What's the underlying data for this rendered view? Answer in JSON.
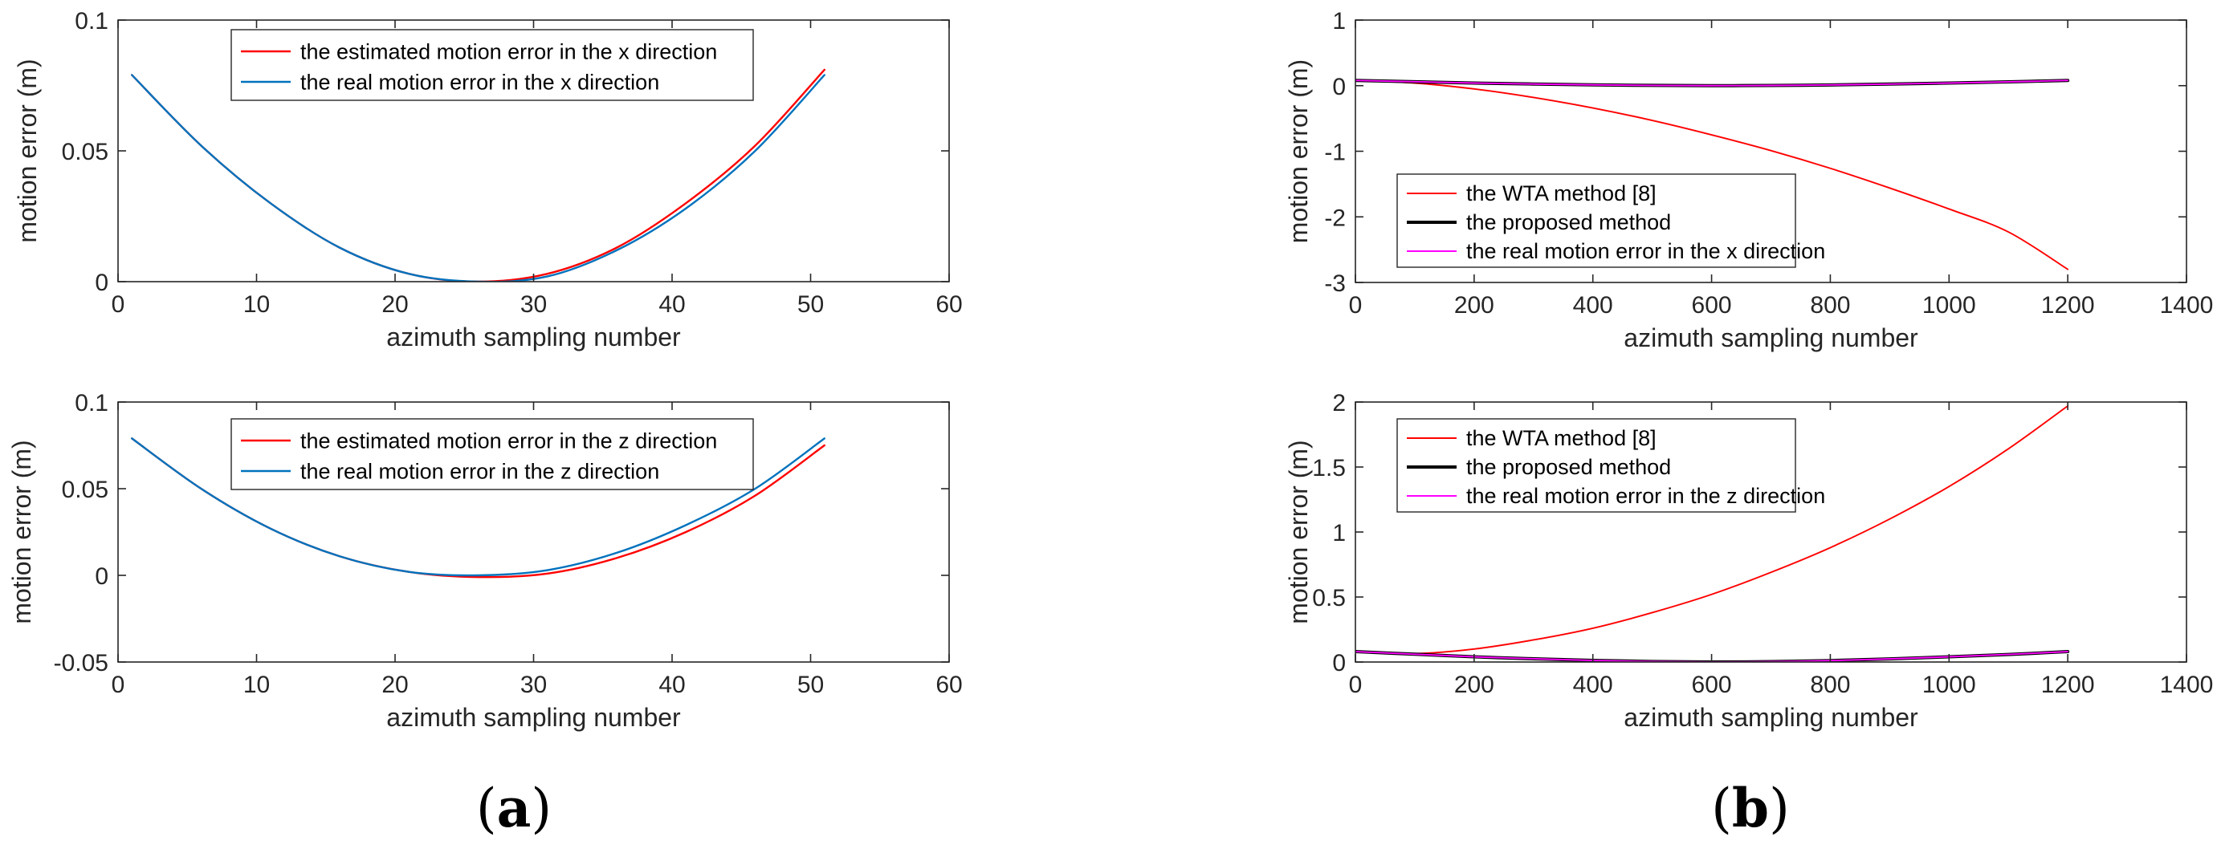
{
  "chart_data": [
    {
      "id": "ax1",
      "type": "line",
      "xlabel": "azimuth sampling number",
      "ylabel": "motion error (m)",
      "xlim": [
        0,
        60
      ],
      "ylim": [
        0,
        0.1
      ],
      "xticks": [
        0,
        10,
        20,
        30,
        40,
        50,
        60
      ],
      "yticks": [
        0,
        0.05,
        0.1
      ],
      "xtick_labels": [
        "0",
        "10",
        "20",
        "30",
        "40",
        "50",
        "60"
      ],
      "ytick_labels": [
        "0",
        "0.05",
        "0.1"
      ],
      "legend_location": "top-center",
      "series": [
        {
          "name": "the estimated motion error in the x direction",
          "color": "#ff0000",
          "width": 1.5,
          "x": [
            1,
            6,
            11,
            16,
            21,
            26,
            31,
            36,
            41,
            46,
            51
          ],
          "y": [
            0.079,
            0.052,
            0.03,
            0.013,
            0.003,
            0.0,
            0.003,
            0.013,
            0.03,
            0.052,
            0.081
          ]
        },
        {
          "name": "the real motion error in the x direction",
          "color": "#0072bd",
          "width": 1.5,
          "x": [
            1,
            6,
            11,
            16,
            21,
            26,
            31,
            36,
            41,
            46,
            51
          ],
          "y": [
            0.079,
            0.052,
            0.03,
            0.013,
            0.003,
            0.0,
            0.002,
            0.012,
            0.028,
            0.05,
            0.079
          ]
        }
      ]
    },
    {
      "id": "ax2",
      "type": "line",
      "xlabel": "azimuth sampling number",
      "ylabel": "motion error (m)",
      "xlim": [
        0,
        60
      ],
      "ylim": [
        -0.05,
        0.1
      ],
      "xticks": [
        0,
        10,
        20,
        30,
        40,
        50,
        60
      ],
      "yticks": [
        -0.05,
        0,
        0.05,
        0.1
      ],
      "xtick_labels": [
        "0",
        "10",
        "20",
        "30",
        "40",
        "50",
        "60"
      ],
      "ytick_labels": [
        "-0.05",
        "0",
        "0.05",
        "0.1"
      ],
      "legend_location": "top-center",
      "series": [
        {
          "name": "the estimated motion error in the z direction",
          "color": "#ff0000",
          "width": 1.5,
          "x": [
            1,
            6,
            11,
            16,
            21,
            26,
            31,
            36,
            41,
            46,
            51
          ],
          "y": [
            0.079,
            0.05,
            0.027,
            0.011,
            0.002,
            -0.001,
            0.001,
            0.01,
            0.025,
            0.046,
            0.075
          ]
        },
        {
          "name": "the real motion error in the z direction",
          "color": "#0072bd",
          "width": 1.5,
          "x": [
            1,
            6,
            11,
            16,
            21,
            26,
            31,
            36,
            41,
            46,
            51
          ],
          "y": [
            0.079,
            0.05,
            0.027,
            0.011,
            0.002,
            0.0,
            0.003,
            0.013,
            0.029,
            0.05,
            0.079
          ]
        }
      ]
    },
    {
      "id": "ax3",
      "type": "line",
      "xlabel": "azimuth sampling number",
      "ylabel": "motion error (m)",
      "xlim": [
        0,
        1400
      ],
      "ylim": [
        -3,
        1
      ],
      "xticks": [
        0,
        200,
        400,
        600,
        800,
        1000,
        1200,
        1400
      ],
      "yticks": [
        -3,
        -2,
        -1,
        0,
        1
      ],
      "xtick_labels": [
        "0",
        "200",
        "400",
        "600",
        "800",
        "1000",
        "1200",
        "1400"
      ],
      "ytick_labels": [
        "-3",
        "-2",
        "-1",
        "0",
        "1"
      ],
      "legend_location": "bottom-left",
      "series": [
        {
          "name": "the WTA method [8]",
          "color": "#ff0000",
          "width": 1.2,
          "x": [
            0,
            100,
            200,
            300,
            400,
            500,
            600,
            700,
            800,
            900,
            1000,
            1100,
            1200
          ],
          "y": [
            0.08,
            0.04,
            -0.05,
            -0.18,
            -0.34,
            -0.53,
            -0.75,
            -0.99,
            -1.26,
            -1.56,
            -1.88,
            -2.23,
            -2.8
          ]
        },
        {
          "name": "the proposed method",
          "color": "#000000",
          "width": 2.5,
          "x": [
            0,
            100,
            200,
            300,
            400,
            500,
            600,
            700,
            800,
            900,
            1000,
            1100,
            1200
          ],
          "y": [
            0.08,
            0.06,
            0.04,
            0.025,
            0.012,
            0.004,
            0.0,
            0.003,
            0.011,
            0.024,
            0.04,
            0.058,
            0.08
          ]
        },
        {
          "name": "the real motion error in the x direction",
          "color": "#ff00ff",
          "width": 1.2,
          "x": [
            0,
            100,
            200,
            300,
            400,
            500,
            600,
            700,
            800,
            900,
            1000,
            1100,
            1200
          ],
          "y": [
            0.08,
            0.06,
            0.04,
            0.025,
            0.012,
            0.004,
            0.0,
            0.003,
            0.011,
            0.024,
            0.04,
            0.058,
            0.08
          ]
        }
      ]
    },
    {
      "id": "ax4",
      "type": "line",
      "xlabel": "azimuth sampling number",
      "ylabel": "motion error (m)",
      "xlim": [
        0,
        1400
      ],
      "ylim": [
        0,
        2
      ],
      "xticks": [
        0,
        200,
        400,
        600,
        800,
        1000,
        1200,
        1400
      ],
      "yticks": [
        0,
        0.5,
        1,
        1.5,
        2
      ],
      "xtick_labels": [
        "0",
        "200",
        "400",
        "600",
        "800",
        "1000",
        "1200",
        "1400"
      ],
      "ytick_labels": [
        "0",
        "0.5",
        "1",
        "1.5",
        "2"
      ],
      "legend_location": "top-left",
      "series": [
        {
          "name": "the WTA method [8]",
          "color": "#ff0000",
          "width": 1.2,
          "x": [
            0,
            100,
            200,
            300,
            400,
            500,
            600,
            700,
            800,
            900,
            1000,
            1100,
            1200
          ],
          "y": [
            0.08,
            0.065,
            0.1,
            0.17,
            0.26,
            0.38,
            0.52,
            0.69,
            0.88,
            1.1,
            1.35,
            1.64,
            1.97
          ]
        },
        {
          "name": "the proposed method",
          "color": "#000000",
          "width": 2.5,
          "x": [
            0,
            100,
            200,
            300,
            400,
            500,
            600,
            700,
            800,
            900,
            1000,
            1100,
            1200
          ],
          "y": [
            0.08,
            0.06,
            0.04,
            0.025,
            0.012,
            0.004,
            0.0,
            0.003,
            0.011,
            0.024,
            0.04,
            0.058,
            0.08
          ]
        },
        {
          "name": "the real motion error in the z direction",
          "color": "#ff00ff",
          "width": 1.2,
          "x": [
            0,
            100,
            200,
            300,
            400,
            500,
            600,
            700,
            800,
            900,
            1000,
            1100,
            1200
          ],
          "y": [
            0.08,
            0.06,
            0.04,
            0.025,
            0.012,
            0.004,
            0.0,
            0.003,
            0.011,
            0.024,
            0.04,
            0.058,
            0.08
          ]
        }
      ]
    }
  ],
  "captions": {
    "a": {
      "open": "(",
      "letter": "a",
      "close": ")"
    },
    "b": {
      "open": "(",
      "letter": "b",
      "close": ")"
    }
  }
}
